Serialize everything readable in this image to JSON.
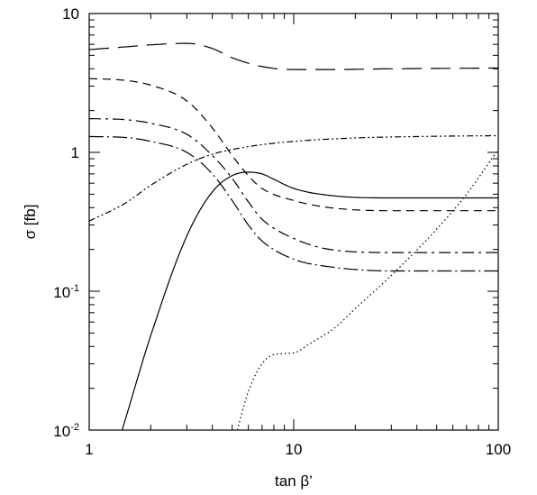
{
  "chart_data": {
    "type": "line",
    "xscale": "log",
    "yscale": "log",
    "xlim": [
      1,
      100
    ],
    "ylim": [
      0.01,
      10
    ],
    "grid": false,
    "xlabel": "tan β’",
    "ylabel": "σ [fb]",
    "xticks": [
      {
        "value": 1,
        "label": "1"
      },
      {
        "value": 10,
        "label": "10"
      },
      {
        "value": 100,
        "label": "100"
      }
    ],
    "yticks": [
      {
        "value": 0.01,
        "base": "10",
        "exp": "-2"
      },
      {
        "value": 0.1,
        "base": "10",
        "exp": "-1"
      },
      {
        "value": 1,
        "label": "1"
      },
      {
        "value": 10,
        "label": "10"
      }
    ],
    "series": [
      {
        "style": "long-dash",
        "dash": "22 10",
        "points": [
          [
            1,
            5.5
          ],
          [
            1.5,
            5.75
          ],
          [
            2,
            5.95
          ],
          [
            3,
            6.1
          ],
          [
            4,
            5.6
          ],
          [
            5,
            4.8
          ],
          [
            7,
            4.15
          ],
          [
            10,
            3.95
          ],
          [
            15,
            3.95
          ],
          [
            30,
            4.0
          ],
          [
            100,
            4.05
          ]
        ]
      },
      {
        "style": "dash",
        "dash": "9 6",
        "points": [
          [
            1,
            3.4
          ],
          [
            1.5,
            3.3
          ],
          [
            2,
            3.05
          ],
          [
            3,
            2.35
          ],
          [
            4,
            1.5
          ],
          [
            5,
            0.95
          ],
          [
            6,
            0.68
          ],
          [
            7,
            0.55
          ],
          [
            10,
            0.45
          ],
          [
            15,
            0.4
          ],
          [
            30,
            0.38
          ],
          [
            100,
            0.38
          ]
        ]
      },
      {
        "style": "dash-dot",
        "dash": "13 5 3 5",
        "points": [
          [
            1,
            1.75
          ],
          [
            1.5,
            1.72
          ],
          [
            2,
            1.62
          ],
          [
            3,
            1.35
          ],
          [
            4,
            0.95
          ],
          [
            5,
            0.65
          ],
          [
            6,
            0.44
          ],
          [
            7,
            0.33
          ],
          [
            10,
            0.24
          ],
          [
            15,
            0.2
          ],
          [
            30,
            0.19
          ],
          [
            100,
            0.19
          ]
        ]
      },
      {
        "style": "long-dash-dot",
        "dash": "16 4 2 4",
        "points": [
          [
            1,
            1.3
          ],
          [
            1.5,
            1.28
          ],
          [
            2,
            1.2
          ],
          [
            3,
            1.0
          ],
          [
            4,
            0.7
          ],
          [
            5,
            0.45
          ],
          [
            6,
            0.3
          ],
          [
            7,
            0.23
          ],
          [
            10,
            0.17
          ],
          [
            15,
            0.15
          ],
          [
            30,
            0.14
          ],
          [
            100,
            0.14
          ]
        ]
      },
      {
        "style": "dash-dot-dot",
        "dash": "7 3 2 3 2 3",
        "points": [
          [
            1,
            0.32
          ],
          [
            1.5,
            0.43
          ],
          [
            2,
            0.58
          ],
          [
            3,
            0.82
          ],
          [
            4,
            0.97
          ],
          [
            6,
            1.1
          ],
          [
            10,
            1.2
          ],
          [
            20,
            1.27
          ],
          [
            40,
            1.3
          ],
          [
            100,
            1.32
          ]
        ]
      },
      {
        "style": "solid",
        "dash": "",
        "points": [
          [
            1.45,
            0.01
          ],
          [
            2,
            0.048
          ],
          [
            3,
            0.25
          ],
          [
            4,
            0.52
          ],
          [
            5,
            0.68
          ],
          [
            6,
            0.72
          ],
          [
            7,
            0.7
          ],
          [
            8,
            0.64
          ],
          [
            10,
            0.55
          ],
          [
            15,
            0.49
          ],
          [
            30,
            0.47
          ],
          [
            100,
            0.47
          ]
        ]
      },
      {
        "style": "dotted",
        "dash": "1.5 3",
        "points": [
          [
            5.3,
            0.01
          ],
          [
            6,
            0.019
          ],
          [
            7,
            0.03
          ],
          [
            8,
            0.035
          ],
          [
            10,
            0.036
          ],
          [
            12,
            0.042
          ],
          [
            16,
            0.055
          ],
          [
            20,
            0.075
          ],
          [
            30,
            0.13
          ],
          [
            50,
            0.28
          ],
          [
            70,
            0.5
          ],
          [
            100,
            1.05
          ]
        ]
      }
    ]
  }
}
